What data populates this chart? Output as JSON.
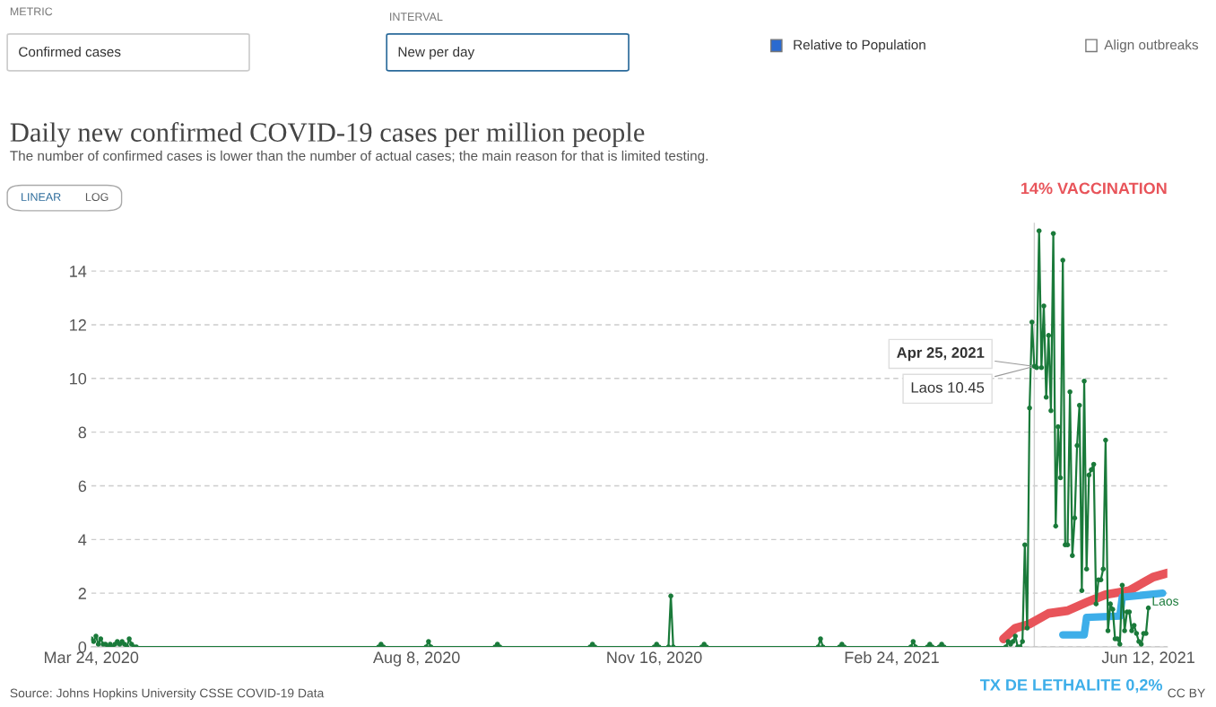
{
  "chart_data": {
    "type": "line",
    "title": "Daily new confirmed COVID-19 cases per million people",
    "subtitle": "The number of confirmed cases is lower than the number of actual cases; the main reason for that is limited testing.",
    "annotations": [
      "METRIC",
      "Confirmed cases",
      "INTERVAL",
      "New per day",
      "Relative to Population",
      "Align outbreaks",
      "LINEAR",
      "LOG",
      "Source: Johns Hopkins University CSSE COVID-19 Data",
      "CC BY",
      {
        "text": "Apr 25, 2021",
        "x": "2021-04-25",
        "y": 10.45
      },
      {
        "text": "Laos 10.45",
        "x": "2021-04-25",
        "y": 10.45
      }
    ],
    "xlim": [
      "2020-03-24",
      "2021-06-20"
    ],
    "ylim": [
      0,
      15.8
    ],
    "xticks": [
      {
        "value": "2020-03-24",
        "label": "Mar 24, 2020"
      },
      {
        "value": "2020-08-08",
        "label": "Aug 8, 2020"
      },
      {
        "value": "2020-11-16",
        "label": "Nov 16, 2020"
      },
      {
        "value": "2021-02-24",
        "label": "Feb 24, 2021"
      },
      {
        "value": "2021-06-12",
        "label": "Jun 12, 2021"
      }
    ],
    "yticks": [
      0,
      2,
      4,
      6,
      8,
      10,
      12,
      14
    ],
    "grid": "y",
    "legend": false,
    "tick_labels": "xy",
    "ref_lines": [
      {
        "axis": "x",
        "value": "2021-04-25",
        "label": null,
        "color": "#d0d0d0"
      }
    ],
    "series": [
      {
        "name": "Laos",
        "color": "#1a7a3a",
        "marker": "circle",
        "line_style": "solid",
        "x": [
          "2020-03-24",
          "2020-03-25",
          "2020-03-26",
          "2020-03-27",
          "2020-03-28",
          "2020-03-29",
          "2020-03-30",
          "2020-03-31",
          "2020-04-01",
          "2020-04-02",
          "2020-04-03",
          "2020-04-04",
          "2020-04-05",
          "2020-04-06",
          "2020-04-07",
          "2020-04-08",
          "2020-04-09",
          "2020-04-10",
          "2020-04-11",
          "2020-04-12",
          "2020-07-23",
          "2020-07-24",
          "2020-07-25",
          "2020-08-12",
          "2020-08-13",
          "2020-08-14",
          "2020-09-10",
          "2020-09-11",
          "2020-09-12",
          "2020-10-20",
          "2020-10-21",
          "2020-10-22",
          "2020-11-16",
          "2020-11-17",
          "2020-11-18",
          "2020-11-22",
          "2020-11-23",
          "2020-11-24",
          "2020-12-06",
          "2020-12-07",
          "2020-12-08",
          "2021-01-24",
          "2021-01-25",
          "2021-01-26",
          "2021-02-02",
          "2021-02-03",
          "2021-02-04",
          "2021-03-04",
          "2021-03-05",
          "2021-03-06",
          "2021-03-11",
          "2021-03-12",
          "2021-03-13",
          "2021-03-16",
          "2021-03-17",
          "2021-03-18",
          "2021-04-13",
          "2021-04-14",
          "2021-04-15",
          "2021-04-16",
          "2021-04-17",
          "2021-04-18",
          "2021-04-19",
          "2021-04-20",
          "2021-04-21",
          "2021-04-22",
          "2021-04-23",
          "2021-04-24",
          "2021-04-25",
          "2021-04-26",
          "2021-04-27",
          "2021-04-28",
          "2021-04-29",
          "2021-04-30",
          "2021-05-01",
          "2021-05-02",
          "2021-05-03",
          "2021-05-04",
          "2021-05-05",
          "2021-05-06",
          "2021-05-07",
          "2021-05-08",
          "2021-05-09",
          "2021-05-10",
          "2021-05-11",
          "2021-05-12",
          "2021-05-13",
          "2021-05-14",
          "2021-05-15",
          "2021-05-16",
          "2021-05-17",
          "2021-05-18",
          "2021-05-19",
          "2021-05-20",
          "2021-05-21",
          "2021-05-22",
          "2021-05-23",
          "2021-05-24",
          "2021-05-25",
          "2021-05-26",
          "2021-05-27",
          "2021-05-28",
          "2021-05-29",
          "2021-05-30",
          "2021-05-31",
          "2021-06-01",
          "2021-06-02",
          "2021-06-03",
          "2021-06-04",
          "2021-06-05",
          "2021-06-06",
          "2021-06-07",
          "2021-06-08",
          "2021-06-09",
          "2021-06-10",
          "2021-06-11",
          "2021-06-12"
        ],
        "values": [
          0.3,
          0.2,
          0.4,
          0.1,
          0.3,
          0.1,
          0.1,
          0,
          0.1,
          0,
          0.1,
          0.2,
          0.1,
          0.2,
          0.1,
          0,
          0.3,
          0.1,
          0,
          0,
          0,
          0.1,
          0,
          0,
          0.2,
          0,
          0,
          0.1,
          0,
          0,
          0.1,
          0,
          0,
          0.1,
          0,
          0,
          1.9,
          0,
          0,
          0.1,
          0,
          0,
          0.3,
          0,
          0,
          0.1,
          0,
          0,
          0.2,
          0,
          0,
          0.1,
          0,
          0,
          0.1,
          0,
          0,
          0.2,
          0.1,
          0.2,
          0.4,
          0,
          0,
          0.2,
          3.8,
          0.7,
          8.9,
          12.1,
          10.45,
          10.4,
          15.5,
          10.4,
          12.7,
          9.3,
          11.6,
          8.8,
          15.4,
          4.5,
          8.2,
          6.3,
          14.4,
          3.8,
          3.8,
          9.5,
          3.4,
          4.8,
          7.5,
          9.0,
          2.1,
          9.9,
          2.9,
          6.4,
          6.6,
          6.8,
          1.6,
          2.5,
          2.5,
          2.9,
          7.7,
          0.6,
          1.6,
          1.4,
          0.3,
          0.3,
          0.1,
          2.3,
          0.6,
          1.3,
          1.3,
          0.6,
          0.8,
          0.5,
          0.2,
          0.1,
          0.5,
          0.5,
          1.45
        ]
      },
      {
        "name": "14% VACCINATION",
        "color": "#e8545a",
        "marker": "none",
        "line_style": "solid",
        "x": [
          "2021-04-12",
          "2021-04-17",
          "2021-04-23",
          "2021-05-01",
          "2021-05-09",
          "2021-05-18",
          "2021-05-25",
          "2021-06-04",
          "2021-06-14",
          "2021-06-20"
        ],
        "values": [
          0.3,
          0.7,
          0.85,
          1.25,
          1.35,
          1.7,
          1.95,
          2.1,
          2.6,
          2.75
        ]
      },
      {
        "name": "TX DE LETHALITE 0,2%",
        "color": "#3daee9",
        "marker": "none",
        "line_style": "solid",
        "x": [
          "2021-05-07",
          "2021-05-16",
          "2021-05-17",
          "2021-05-31",
          "2021-06-01",
          "2021-06-18"
        ],
        "values": [
          0.45,
          0.45,
          1.1,
          1.15,
          1.85,
          2.0
        ]
      }
    ]
  }
}
